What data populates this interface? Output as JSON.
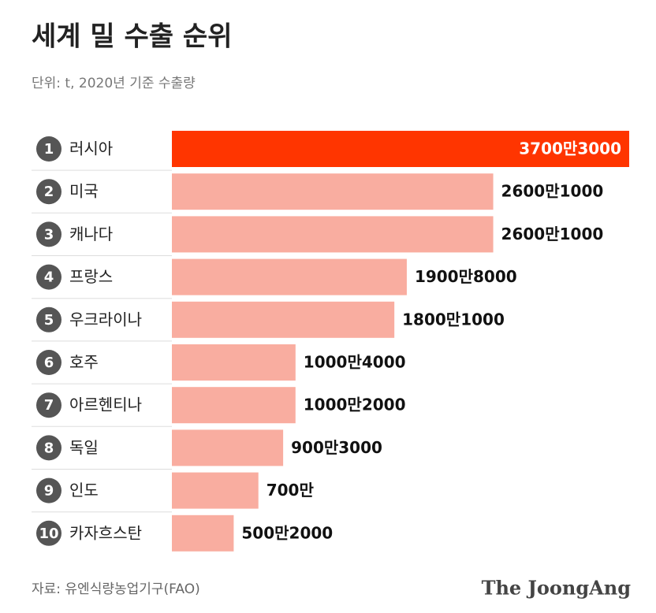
{
  "chart_data": {
    "type": "bar",
    "orientation": "horizontal",
    "title": "세계 밀 수출 순위",
    "subtitle": "단위: t, 2020년 기준 수출량",
    "source": "자료: 유엔식량농업기구(FAO)",
    "logo": "The JoongAng",
    "ranks": [
      "1",
      "2",
      "3",
      "4",
      "5",
      "6",
      "7",
      "8",
      "9",
      "10"
    ],
    "categories": [
      "러시아",
      "미국",
      "캐나다",
      "프랑스",
      "우크라이나",
      "호주",
      "아르헨티나",
      "독일",
      "인도",
      "카자흐스탄"
    ],
    "values": [
      37003000,
      26001000,
      26001000,
      19008000,
      18001000,
      10004000,
      10002000,
      9003000,
      7000000,
      5002000
    ],
    "value_labels": [
      "3700만3000",
      "2600만1000",
      "2600만1000",
      "1900만8000",
      "1800만1000",
      "1000만4000",
      "1000만2000",
      "900만3000",
      "700만",
      "500만2000"
    ],
    "color": "#f9ada0",
    "highlight_color": "#ff3500",
    "highlight_index": 0
  }
}
